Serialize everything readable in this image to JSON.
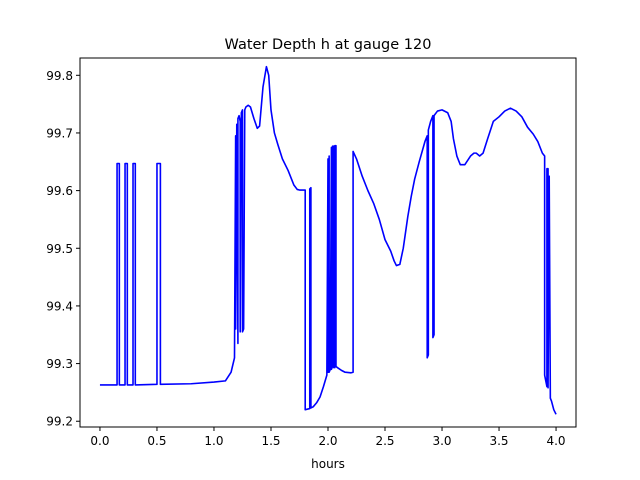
{
  "chart_data": {
    "type": "line",
    "title": "Water Depth h at gauge 120",
    "xlabel": "hours",
    "ylabel": "",
    "xlim": [
      -0.175,
      4.175
    ],
    "ylim": [
      99.19,
      99.83
    ],
    "xticks": [
      0.0,
      0.5,
      1.0,
      1.5,
      2.0,
      2.5,
      3.0,
      3.5,
      4.0
    ],
    "xtick_labels": [
      "0.0",
      "0.5",
      "1.0",
      "1.5",
      "2.0",
      "2.5",
      "3.0",
      "3.5",
      "4.0"
    ],
    "yticks": [
      99.2,
      99.3,
      99.4,
      99.5,
      99.6,
      99.7,
      99.8
    ],
    "ytick_labels": [
      "99.2",
      "99.3",
      "99.4",
      "99.5",
      "99.6",
      "99.7",
      "99.8"
    ],
    "grid": false,
    "legend": "none",
    "series": [
      {
        "color": "#0000ff",
        "x": [
          0.0,
          0.15,
          0.15,
          0.17,
          0.17,
          0.22,
          0.22,
          0.24,
          0.24,
          0.29,
          0.29,
          0.31,
          0.31,
          0.5,
          0.5,
          0.53,
          0.53,
          0.8,
          1.0,
          1.1,
          1.15,
          1.18,
          1.19,
          1.19,
          1.2,
          1.21,
          1.21,
          1.22,
          1.23,
          1.23,
          1.24,
          1.25,
          1.25,
          1.26,
          1.27,
          1.28,
          1.3,
          1.32,
          1.35,
          1.38,
          1.4,
          1.43,
          1.46,
          1.48,
          1.5,
          1.53,
          1.56,
          1.6,
          1.65,
          1.7,
          1.73,
          1.75,
          1.78,
          1.8,
          1.8,
          1.84,
          1.84,
          1.85,
          1.85,
          1.87,
          1.9,
          1.93,
          1.96,
          1.99,
          2.0,
          2.0,
          2.01,
          2.01,
          2.02,
          2.03,
          2.03,
          2.04,
          2.04,
          2.05,
          2.05,
          2.06,
          2.06,
          2.07,
          2.07,
          2.09,
          2.12,
          2.15,
          2.2,
          2.22,
          2.22,
          2.25,
          2.3,
          2.35,
          2.4,
          2.45,
          2.5,
          2.55,
          2.58,
          2.6,
          2.63,
          2.66,
          2.7,
          2.73,
          2.76,
          2.8,
          2.85,
          2.87,
          2.87,
          2.88,
          2.88,
          2.9,
          2.92,
          2.92,
          2.93,
          2.93,
          2.96,
          3.0,
          3.05,
          3.08,
          3.1,
          3.13,
          3.16,
          3.2,
          3.25,
          3.28,
          3.3,
          3.33,
          3.36,
          3.4,
          3.45,
          3.5,
          3.55,
          3.6,
          3.65,
          3.7,
          3.75,
          3.8,
          3.84,
          3.88,
          3.9,
          3.9,
          3.92,
          3.92,
          3.93,
          3.93,
          3.94,
          3.94,
          3.95,
          3.95,
          3.96,
          3.98,
          4.0
        ],
        "y": [
          99.263,
          99.263,
          99.647,
          99.647,
          99.263,
          99.263,
          99.647,
          99.647,
          99.263,
          99.263,
          99.647,
          99.647,
          99.263,
          99.264,
          99.647,
          99.647,
          99.264,
          99.265,
          99.268,
          99.27,
          99.285,
          99.31,
          99.695,
          99.36,
          99.715,
          99.335,
          99.725,
          99.73,
          99.72,
          99.355,
          99.735,
          99.74,
          99.355,
          99.36,
          99.74,
          99.745,
          99.748,
          99.745,
          99.725,
          99.708,
          99.712,
          99.78,
          99.815,
          99.8,
          99.74,
          99.7,
          99.68,
          99.655,
          99.635,
          99.61,
          99.602,
          99.601,
          99.601,
          99.601,
          99.22,
          99.222,
          99.603,
          99.605,
          99.223,
          99.225,
          99.232,
          99.242,
          99.26,
          99.28,
          99.655,
          99.285,
          99.66,
          99.285,
          99.29,
          99.675,
          99.29,
          99.295,
          99.677,
          99.677,
          99.293,
          99.293,
          99.678,
          99.678,
          99.295,
          99.292,
          99.288,
          99.285,
          99.284,
          99.285,
          99.668,
          99.655,
          99.625,
          99.6,
          99.578,
          99.55,
          99.515,
          99.495,
          99.478,
          99.47,
          99.472,
          99.5,
          99.555,
          99.59,
          99.62,
          99.65,
          99.685,
          99.695,
          99.31,
          99.315,
          99.705,
          99.72,
          99.73,
          99.345,
          99.35,
          99.73,
          99.738,
          99.74,
          99.735,
          99.72,
          99.69,
          99.66,
          99.645,
          99.645,
          99.66,
          99.665,
          99.665,
          99.66,
          99.665,
          99.69,
          99.72,
          99.728,
          99.738,
          99.743,
          99.738,
          99.728,
          99.71,
          99.698,
          99.685,
          99.665,
          99.66,
          99.28,
          99.26,
          99.638,
          99.638,
          99.258,
          99.625,
          99.625,
          99.24,
          99.24,
          99.235,
          99.22,
          99.212
        ]
      }
    ]
  }
}
